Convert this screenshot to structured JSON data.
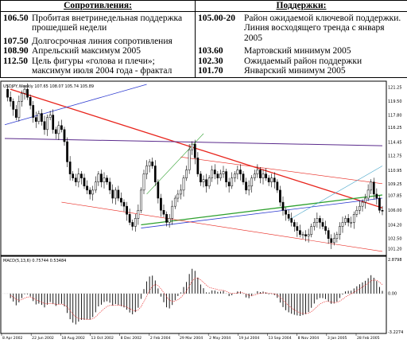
{
  "levels": {
    "resistance_title": "Сопротивления:",
    "support_title": "Поддержки:",
    "resistance": [
      {
        "value": "106.50",
        "text": "Пробитая внетринедельная поддержка прошедшей недели"
      },
      {
        "value": "107.50",
        "text": "Долгосрочная линия сопротивления"
      },
      {
        "value": "108.90",
        "text": "Апрельский максимум 2005"
      },
      {
        "value": "112.50",
        "text": "Цель фигуры «голова и плечи»; максимум июля 2004 года - фрактал"
      }
    ],
    "support": [
      {
        "value": "105.00-20",
        "text": "Район ожидаемой ключевой поддержки. Линия восходящего тренда с января 2005"
      },
      {
        "value": "103.60",
        "text": "Мартовский минимум 2005"
      },
      {
        "value": "102.30",
        "text": "Ожидаемый район поддержки"
      },
      {
        "value": "101.70",
        "text": "Январский минимум 2005"
      }
    ]
  },
  "chart_data": [
    {
      "type": "candlestick",
      "title": "USDJPY,Weekly  107.65 108.07 105.74 105.89",
      "y_ticks": [
        "121.25",
        "119.50",
        "117.80",
        "116.25",
        "114.45",
        "112.75",
        "110.95",
        "109.25",
        "107.85",
        "106.00",
        "104.20",
        "102.50",
        "101.20"
      ],
      "x_ticks": [
        "8 Apr 2002",
        "22 Jun 2002",
        "18 Aug 2002",
        "13 Oct 2002",
        "8 Dec 2002",
        "2 Feb 2004",
        "29 Mar 2004",
        "2 May 2004",
        "19 Jul 2004",
        "13 Sep 2004",
        "8 Nov 2004",
        "3 Jan 2005",
        "28 Feb 2005"
      ],
      "ylim": [
        100.6,
        121.8
      ],
      "close_path": [
        121.0,
        120.0,
        119.5,
        118.5,
        117.5,
        119.5,
        120.5,
        121.0,
        120.0,
        119.0,
        117.5,
        117.0,
        118.0,
        117.0,
        116.0,
        117.5,
        117.8,
        116.0,
        115.5,
        116.5,
        116.0,
        114.5,
        112.0,
        110.5,
        110.0,
        109.5,
        110.5,
        110.0,
        109.0,
        108.5,
        108.0,
        108.5,
        109.5,
        110.5,
        109.5,
        110.0,
        109.5,
        108.5,
        107.5,
        108.5,
        107.5,
        107.0,
        106.5,
        105.5,
        104.5,
        104.0,
        105.0,
        106.0,
        108.5,
        110.5,
        111.5,
        112.0,
        111.5,
        109.5,
        107.5,
        106.0,
        105.5,
        104.5,
        105.0,
        106.5,
        107.5,
        108.0,
        108.5,
        110.0,
        111.0,
        113.5,
        114.2,
        112.5,
        110.5,
        109.5,
        109.8,
        109.0,
        110.0,
        111.0,
        110.5,
        110.0,
        110.5,
        110.8,
        109.5,
        109.0,
        110.0,
        110.5,
        111.0,
        110.5,
        109.5,
        108.5,
        109.0,
        110.0,
        110.5,
        111.0,
        110.0,
        110.5,
        110.0,
        109.5,
        110.0,
        109.5,
        108.5,
        107.0,
        106.0,
        105.5,
        105.0,
        104.5,
        104.0,
        103.5,
        103.0,
        103.0,
        102.8,
        103.0,
        104.0,
        104.5,
        105.0,
        104.5,
        104.0,
        103.5,
        102.5,
        102.0,
        102.5,
        103.0,
        104.0,
        104.5,
        105.0,
        104.5,
        104.5,
        105.5,
        106.0,
        106.5,
        107.0,
        107.5,
        108.5,
        109.5,
        108.0,
        107.5,
        106.0,
        105.89
      ]
    },
    {
      "type": "bar",
      "title": "MACD(5,13,6)  0.75744  0.53484",
      "y_ticks": [
        "2.8798",
        "0.00",
        "-3.2274"
      ],
      "ylim": [
        -3.2274,
        2.8798
      ]
    }
  ],
  "colors": {
    "resistance_line": "#e8241c",
    "support_line": "#2ea02e",
    "channel_line": "#2e3bd0",
    "horizontal_line": "#5a2a8c",
    "candle_up": "#ffffff",
    "candle_down": "#000000",
    "signal_line": "#e82020"
  }
}
